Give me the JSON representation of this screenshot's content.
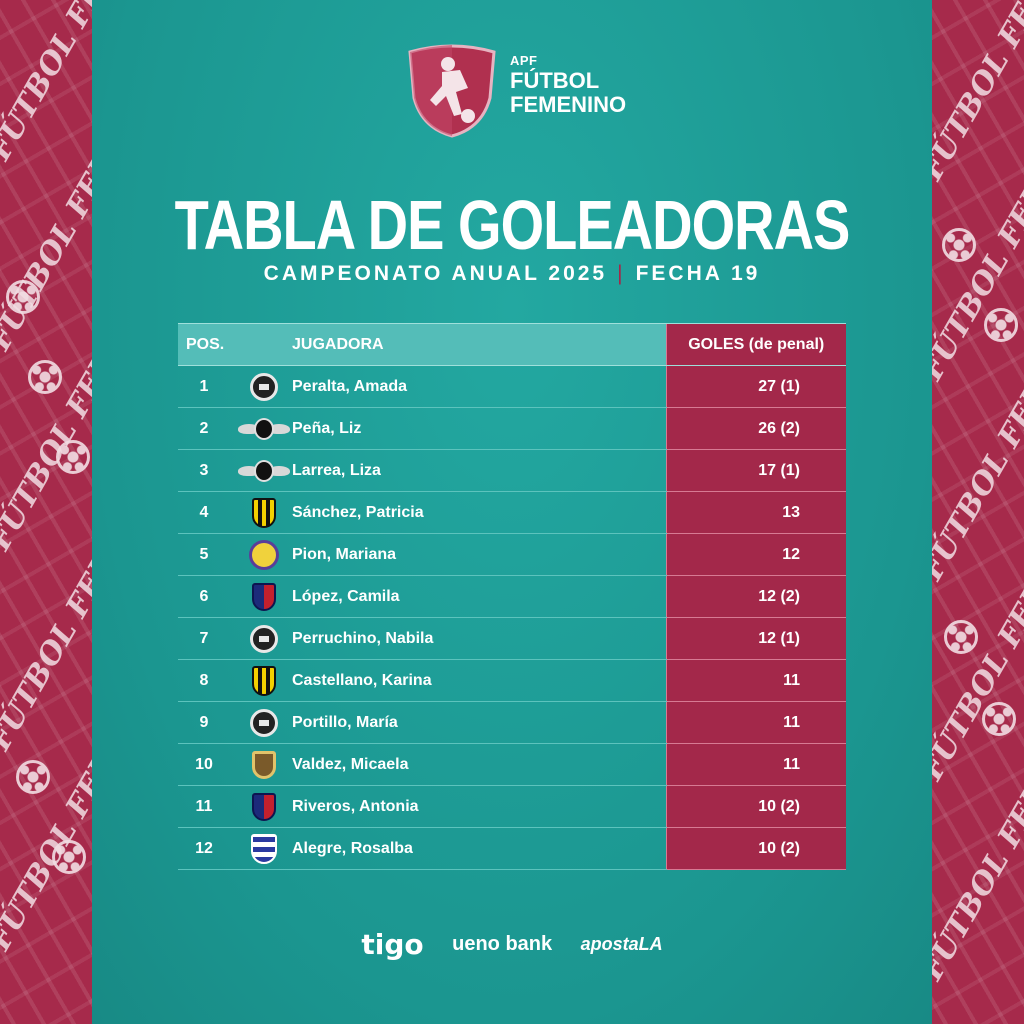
{
  "header": {
    "logo_apf": "APF",
    "logo_line1": "FÚTBOL",
    "logo_line2": "FEMENINO",
    "title": "TABLA DE GOLEADORAS",
    "subtitle_left": "CAMPEONATO ANUAL 2025",
    "subtitle_sep": "|",
    "subtitle_right": "FECHA 19"
  },
  "decor": {
    "pattern_word": "FÚTBOL FEM",
    "accent": "#a3284a",
    "teal": "#1e9d97"
  },
  "table": {
    "headers": {
      "pos": "POS.",
      "player": "JUGADORA",
      "goals": "GOLES (de penal)"
    },
    "rows": [
      {
        "pos": "1",
        "crest": "olimpia",
        "player": "Peralta, Amada",
        "goals": "27 (1)"
      },
      {
        "pos": "2",
        "crest": "libertad",
        "player": "Peña, Liz",
        "goals": "26 (2)"
      },
      {
        "pos": "3",
        "crest": "libertad",
        "player": "Larrea, Liza",
        "goals": "17 (1)"
      },
      {
        "pos": "4",
        "crest": "guarani",
        "player": "Sánchez, Patricia",
        "goals": "13"
      },
      {
        "pos": "5",
        "crest": "sportivo",
        "player": "Pion, Mariana",
        "goals": "12"
      },
      {
        "pos": "6",
        "crest": "cerro",
        "player": "López, Camila",
        "goals": "12 (2)"
      },
      {
        "pos": "7",
        "crest": "olimpia",
        "player": "Perruchino, Nabila",
        "goals": "12 (1)"
      },
      {
        "pos": "8",
        "crest": "guarani",
        "player": "Castellano, Karina",
        "goals": "11"
      },
      {
        "pos": "9",
        "crest": "olimpia",
        "player": "Portillo, María",
        "goals": "11"
      },
      {
        "pos": "10",
        "crest": "valdez",
        "player": "Valdez, Micaela",
        "goals": "11"
      },
      {
        "pos": "11",
        "crest": "cerro",
        "player": "Riveros, Antonia",
        "goals": "10 (2)"
      },
      {
        "pos": "12",
        "crest": "pilcomayo",
        "player": "Alegre, Rosalba",
        "goals": "10 (2)"
      }
    ]
  },
  "sponsors": {
    "tigo": "tigo",
    "ueno": "ueno bank",
    "aposta": "apostaLA"
  }
}
